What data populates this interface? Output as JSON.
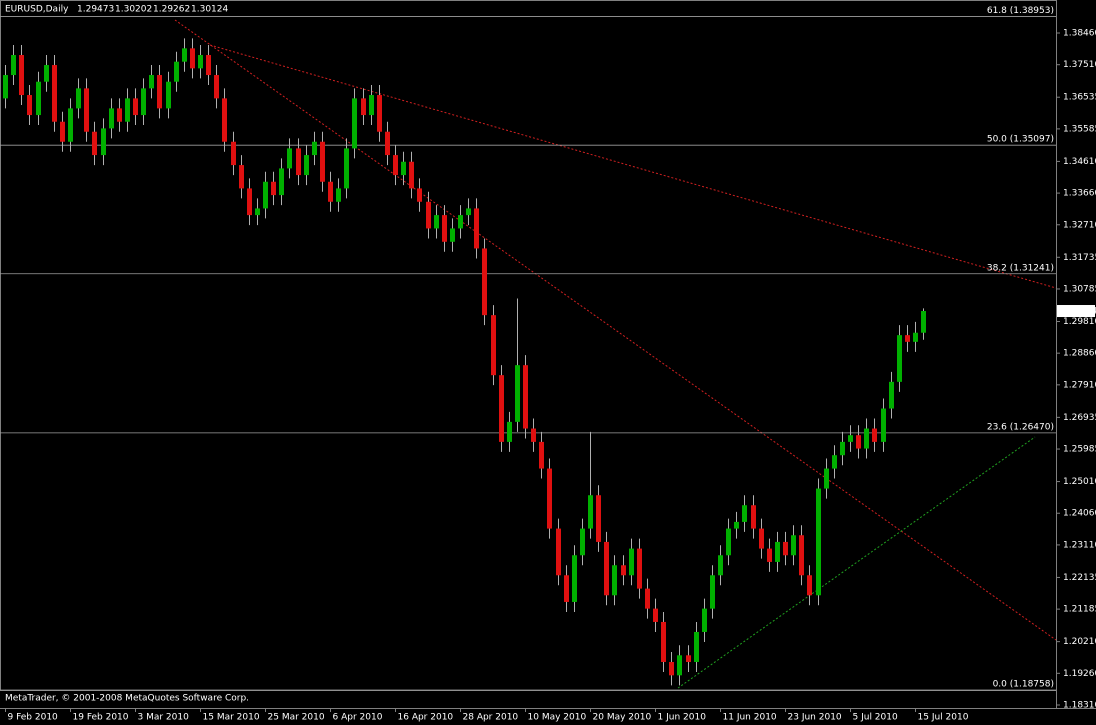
{
  "chart_data": {
    "type": "candlestick",
    "symbol": "EURUSD,Daily",
    "footer": "MetaTrader, © 2001-2008 MetaQuotes Software Corp.",
    "up_color": "#00b000",
    "down_color": "#e01010",
    "wick_color": "#b0b0b0",
    "ylim": [
      1.1822,
      1.3945
    ],
    "yticks": [
      {
        "value": 1.3846,
        "label": "1.38460"
      },
      {
        "value": 1.3751,
        "label": "1.37510"
      },
      {
        "value": 1.36535,
        "label": "1.36535"
      },
      {
        "value": 1.35585,
        "label": "1.35585"
      },
      {
        "value": 1.3461,
        "label": "1.34610"
      },
      {
        "value": 1.3366,
        "label": "1.33660"
      },
      {
        "value": 1.3271,
        "label": "1.32710"
      },
      {
        "value": 1.31735,
        "label": "1.31735"
      },
      {
        "value": 1.30785,
        "label": "1.30785"
      },
      {
        "value": 1.2981,
        "label": "1.29810"
      },
      {
        "value": 1.2886,
        "label": "1.28860"
      },
      {
        "value": 1.2791,
        "label": "1.27910"
      },
      {
        "value": 1.26935,
        "label": "1.26935"
      },
      {
        "value": 1.25985,
        "label": "1.25985"
      },
      {
        "value": 1.2501,
        "label": "1.25010"
      },
      {
        "value": 1.2406,
        "label": "1.24060"
      },
      {
        "value": 1.2311,
        "label": "1.23110"
      },
      {
        "value": 1.22135,
        "label": "1.22135"
      },
      {
        "value": 1.21185,
        "label": "1.21185"
      },
      {
        "value": 1.2021,
        "label": "1.20210"
      },
      {
        "value": 1.1926,
        "label": "1.19260"
      },
      {
        "value": 1.1831,
        "label": "1.18310"
      }
    ],
    "levels": [
      {
        "value": 1.38953,
        "label": "61.8 (1.38953)"
      },
      {
        "value": 1.35097,
        "label": "50.0 (1.35097)"
      },
      {
        "value": 1.31241,
        "label": "38.2 (1.31241)"
      },
      {
        "value": 1.2647,
        "label": "23.6 (1.26470)"
      },
      {
        "value": 1.18758,
        "label": "0.0 (1.18758)"
      }
    ],
    "categories": [
      "9 Feb 2010",
      null,
      null,
      null,
      null,
      null,
      null,
      null,
      "19 Feb 2010",
      null,
      null,
      null,
      null,
      null,
      null,
      null,
      "3 Mar 2010",
      null,
      null,
      null,
      null,
      null,
      null,
      null,
      "15 Mar 2010",
      null,
      null,
      null,
      null,
      null,
      null,
      null,
      "25 Mar 2010",
      null,
      null,
      null,
      null,
      null,
      null,
      null,
      "6 Apr 2010",
      null,
      null,
      null,
      null,
      null,
      null,
      null,
      "16 Apr 2010",
      null,
      null,
      null,
      null,
      null,
      null,
      null,
      "28 Apr 2010",
      null,
      null,
      null,
      null,
      null,
      null,
      null,
      "10 May 2010",
      null,
      null,
      null,
      null,
      null,
      null,
      null,
      "20 May 2010",
      null,
      null,
      null,
      null,
      null,
      null,
      null,
      "1 Jun 2010",
      null,
      null,
      null,
      null,
      null,
      null,
      null,
      "11 Jun 2010",
      null,
      null,
      null,
      null,
      null,
      null,
      null,
      "23 Jun 2010",
      null,
      null,
      null,
      null,
      null,
      null,
      null,
      "5 Jul 2010",
      null,
      null,
      null,
      null,
      null,
      null,
      null,
      "15 Jul 2010",
      null
    ],
    "candles": [
      [
        1.365,
        1.375,
        1.362,
        1.372
      ],
      [
        1.372,
        1.381,
        1.369,
        1.378
      ],
      [
        1.378,
        1.381,
        1.363,
        1.366
      ],
      [
        1.366,
        1.369,
        1.357,
        1.36
      ],
      [
        1.36,
        1.373,
        1.357,
        1.37
      ],
      [
        1.37,
        1.378,
        1.367,
        1.375
      ],
      [
        1.375,
        1.378,
        1.355,
        1.358
      ],
      [
        1.358,
        1.361,
        1.349,
        1.352
      ],
      [
        1.352,
        1.365,
        1.349,
        1.362
      ],
      [
        1.362,
        1.371,
        1.359,
        1.368
      ],
      [
        1.368,
        1.371,
        1.352,
        1.355
      ],
      [
        1.355,
        1.358,
        1.345,
        1.348
      ],
      [
        1.348,
        1.359,
        1.345,
        1.356
      ],
      [
        1.356,
        1.365,
        1.353,
        1.362
      ],
      [
        1.362,
        1.365,
        1.355,
        1.358
      ],
      [
        1.358,
        1.368,
        1.355,
        1.365
      ],
      [
        1.365,
        1.368,
        1.357,
        1.36
      ],
      [
        1.36,
        1.371,
        1.357,
        1.368
      ],
      [
        1.368,
        1.375,
        1.365,
        1.372
      ],
      [
        1.372,
        1.375,
        1.359,
        1.362
      ],
      [
        1.362,
        1.373,
        1.359,
        1.37
      ],
      [
        1.37,
        1.379,
        1.367,
        1.376
      ],
      [
        1.376,
        1.383,
        1.373,
        1.38
      ],
      [
        1.38,
        1.383,
        1.371,
        1.374
      ],
      [
        1.374,
        1.381,
        1.371,
        1.378
      ],
      [
        1.378,
        1.381,
        1.369,
        1.372
      ],
      [
        1.372,
        1.375,
        1.362,
        1.365
      ],
      [
        1.365,
        1.368,
        1.349,
        1.352
      ],
      [
        1.352,
        1.355,
        1.342,
        1.345
      ],
      [
        1.345,
        1.348,
        1.335,
        1.338
      ],
      [
        1.338,
        1.341,
        1.327,
        1.33
      ],
      [
        1.33,
        1.335,
        1.327,
        1.332
      ],
      [
        1.332,
        1.343,
        1.329,
        1.34
      ],
      [
        1.34,
        1.343,
        1.333,
        1.336
      ],
      [
        1.336,
        1.347,
        1.333,
        1.344
      ],
      [
        1.344,
        1.353,
        1.341,
        1.35
      ],
      [
        1.35,
        1.353,
        1.339,
        1.342
      ],
      [
        1.342,
        1.351,
        1.339,
        1.348
      ],
      [
        1.348,
        1.355,
        1.345,
        1.352
      ],
      [
        1.352,
        1.355,
        1.337,
        1.34
      ],
      [
        1.34,
        1.343,
        1.331,
        1.334
      ],
      [
        1.334,
        1.341,
        1.331,
        1.338
      ],
      [
        1.338,
        1.353,
        1.335,
        1.35
      ],
      [
        1.35,
        1.368,
        1.347,
        1.365
      ],
      [
        1.365,
        1.368,
        1.357,
        1.36
      ],
      [
        1.36,
        1.369,
        1.357,
        1.366
      ],
      [
        1.366,
        1.369,
        1.352,
        1.355
      ],
      [
        1.355,
        1.358,
        1.345,
        1.348
      ],
      [
        1.348,
        1.351,
        1.339,
        1.342
      ],
      [
        1.342,
        1.349,
        1.339,
        1.346
      ],
      [
        1.346,
        1.349,
        1.335,
        1.338
      ],
      [
        1.338,
        1.341,
        1.331,
        1.334
      ],
      [
        1.334,
        1.337,
        1.323,
        1.326
      ],
      [
        1.326,
        1.333,
        1.323,
        1.33
      ],
      [
        1.33,
        1.333,
        1.319,
        1.322
      ],
      [
        1.322,
        1.329,
        1.319,
        1.326
      ],
      [
        1.326,
        1.333,
        1.323,
        1.33
      ],
      [
        1.33,
        1.335,
        1.327,
        1.332
      ],
      [
        1.332,
        1.335,
        1.317,
        1.32
      ],
      [
        1.32,
        1.323,
        1.297,
        1.3
      ],
      [
        1.3,
        1.303,
        1.279,
        1.282
      ],
      [
        1.282,
        1.285,
        1.259,
        1.262
      ],
      [
        1.262,
        1.271,
        1.259,
        1.268
      ],
      [
        1.268,
        1.305,
        1.265,
        1.285
      ],
      [
        1.285,
        1.288,
        1.263,
        1.266
      ],
      [
        1.266,
        1.269,
        1.259,
        1.262
      ],
      [
        1.262,
        1.265,
        1.251,
        1.254
      ],
      [
        1.254,
        1.257,
        1.233,
        1.236
      ],
      [
        1.236,
        1.239,
        1.219,
        1.222
      ],
      [
        1.222,
        1.225,
        1.211,
        1.214
      ],
      [
        1.214,
        1.231,
        1.211,
        1.228
      ],
      [
        1.228,
        1.239,
        1.225,
        1.236
      ],
      [
        1.236,
        1.265,
        1.233,
        1.246
      ],
      [
        1.246,
        1.249,
        1.229,
        1.232
      ],
      [
        1.232,
        1.235,
        1.213,
        1.216
      ],
      [
        1.216,
        1.228,
        1.213,
        1.225
      ],
      [
        1.225,
        1.228,
        1.219,
        1.222
      ],
      [
        1.222,
        1.233,
        1.219,
        1.23
      ],
      [
        1.23,
        1.233,
        1.215,
        1.218
      ],
      [
        1.218,
        1.221,
        1.209,
        1.212
      ],
      [
        1.212,
        1.215,
        1.205,
        1.208
      ],
      [
        1.208,
        1.211,
        1.193,
        1.196
      ],
      [
        1.196,
        1.199,
        1.189,
        1.192
      ],
      [
        1.192,
        1.201,
        1.189,
        1.198
      ],
      [
        1.198,
        1.201,
        1.193,
        1.196
      ],
      [
        1.196,
        1.208,
        1.193,
        1.205
      ],
      [
        1.205,
        1.215,
        1.202,
        1.212
      ],
      [
        1.212,
        1.225,
        1.209,
        1.222
      ],
      [
        1.222,
        1.231,
        1.219,
        1.228
      ],
      [
        1.228,
        1.239,
        1.225,
        1.236
      ],
      [
        1.236,
        1.241,
        1.233,
        1.238
      ],
      [
        1.238,
        1.246,
        1.235,
        1.243
      ],
      [
        1.243,
        1.246,
        1.233,
        1.236
      ],
      [
        1.236,
        1.239,
        1.227,
        1.23
      ],
      [
        1.23,
        1.233,
        1.223,
        1.226
      ],
      [
        1.226,
        1.235,
        1.223,
        1.232
      ],
      [
        1.232,
        1.235,
        1.225,
        1.228
      ],
      [
        1.228,
        1.237,
        1.225,
        1.234
      ],
      [
        1.234,
        1.237,
        1.219,
        1.222
      ],
      [
        1.222,
        1.225,
        1.213,
        1.216
      ],
      [
        1.216,
        1.251,
        1.213,
        1.248
      ],
      [
        1.248,
        1.257,
        1.245,
        1.254
      ],
      [
        1.254,
        1.261,
        1.251,
        1.258
      ],
      [
        1.258,
        1.265,
        1.255,
        1.262
      ],
      [
        1.262,
        1.267,
        1.259,
        1.264
      ],
      [
        1.264,
        1.267,
        1.257,
        1.26
      ],
      [
        1.26,
        1.269,
        1.257,
        1.266
      ],
      [
        1.266,
        1.269,
        1.259,
        1.262
      ],
      [
        1.262,
        1.275,
        1.259,
        1.272
      ],
      [
        1.272,
        1.283,
        1.269,
        1.28
      ],
      [
        1.28,
        1.297,
        1.277,
        1.294
      ],
      [
        1.294,
        1.297,
        1.289,
        1.292
      ],
      [
        1.292,
        1.298,
        1.289,
        1.29473
      ],
      [
        1.29473,
        1.30202,
        1.29262,
        1.30124
      ]
    ]
  }
}
